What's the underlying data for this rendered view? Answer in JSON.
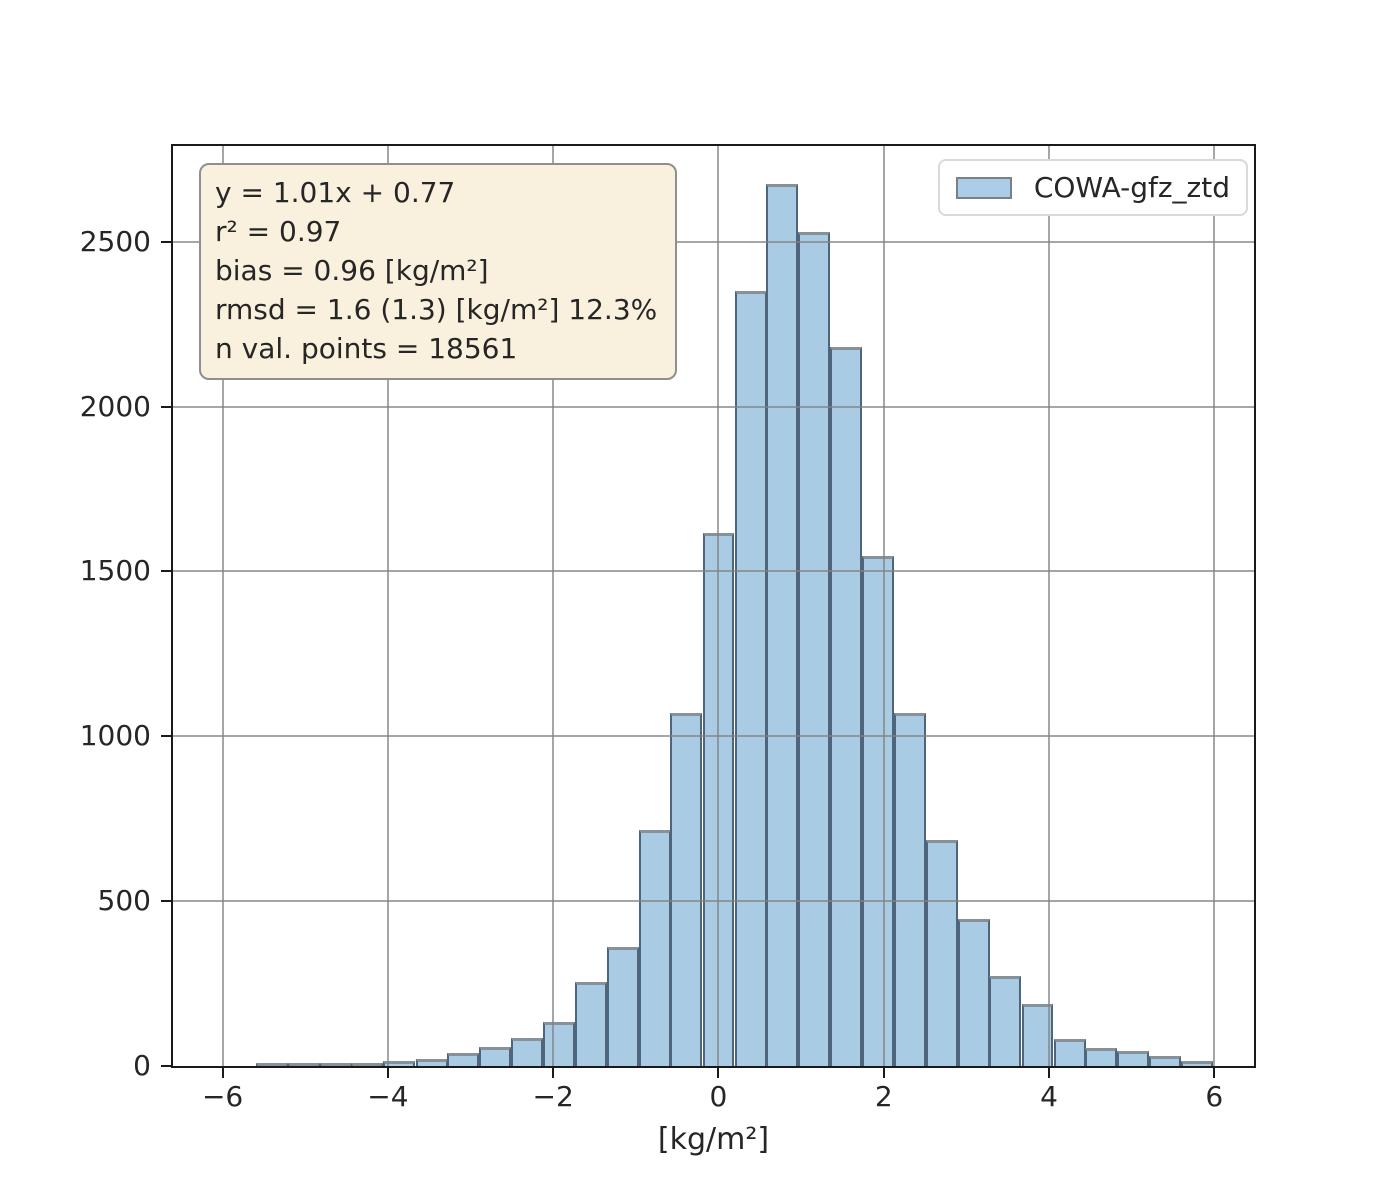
{
  "figure": {
    "background": "#ffffff",
    "title": ""
  },
  "stats_box": {
    "lines": [
      "y = 1.01x + 0.77",
      "r² = 0.97",
      "bias = 0.96 [kg/m²]",
      "rmsd = 1.6 (1.3) [kg/m²] 12.3%",
      "n val. points = 18561"
    ],
    "background": "#f9f1de",
    "border_color": "#8f8f8f"
  },
  "legend": {
    "position": "upper right",
    "items": [
      {
        "label": "COWA-gfz_ztd",
        "swatch_fill": "#abcde7",
        "swatch_border": "#7a8086"
      }
    ]
  },
  "chart_data": {
    "type": "bar",
    "subtype": "histogram",
    "title": "",
    "xlabel": "[kg/m²]",
    "ylabel": "",
    "xlim": [
      -6.6,
      6.48
    ],
    "ylim": [
      0,
      2790
    ],
    "xticks": {
      "values": [
        -6,
        -4,
        -2,
        0,
        2,
        4,
        6
      ],
      "labels": [
        "−6",
        "−4",
        "−2",
        "0",
        "2",
        "4",
        "6"
      ]
    },
    "yticks": {
      "values": [
        0,
        500,
        1000,
        1500,
        2000,
        2500
      ],
      "labels": [
        "0",
        "500",
        "1000",
        "1500",
        "2000",
        "2500"
      ]
    },
    "grid": true,
    "grid_color": "#b0b0b0",
    "legend_position": "upper right",
    "annotations": [
      "y = 1.01x + 0.77",
      "r² = 0.97",
      "bias = 0.96 [kg/m²]",
      "rmsd = 1.6 (1.3) [kg/m²] 12.3%",
      "n val. points = 18561"
    ],
    "series": [
      {
        "name": "COWA-gfz_ztd",
        "fill_color": "#a9cbe4",
        "edge_color": "#4e657b",
        "bin_width": 0.386,
        "bin_centers": [
          -5.4,
          -5.02,
          -4.63,
          -4.25,
          -3.86,
          -3.47,
          -3.09,
          -2.7,
          -2.32,
          -1.93,
          -1.54,
          -1.16,
          -0.77,
          -0.39,
          0.0,
          0.39,
          0.77,
          1.16,
          1.54,
          1.93,
          2.32,
          2.7,
          3.09,
          3.47,
          3.86,
          4.25,
          4.63,
          5.02,
          5.4,
          5.79
        ],
        "counts": [
          2,
          3,
          6,
          10,
          14,
          21,
          40,
          58,
          84,
          133,
          255,
          360,
          715,
          1072,
          1615,
          2350,
          2675,
          2530,
          2180,
          1548,
          1072,
          685,
          445,
          272,
          188,
          81,
          56,
          45,
          30,
          15
        ]
      }
    ]
  }
}
